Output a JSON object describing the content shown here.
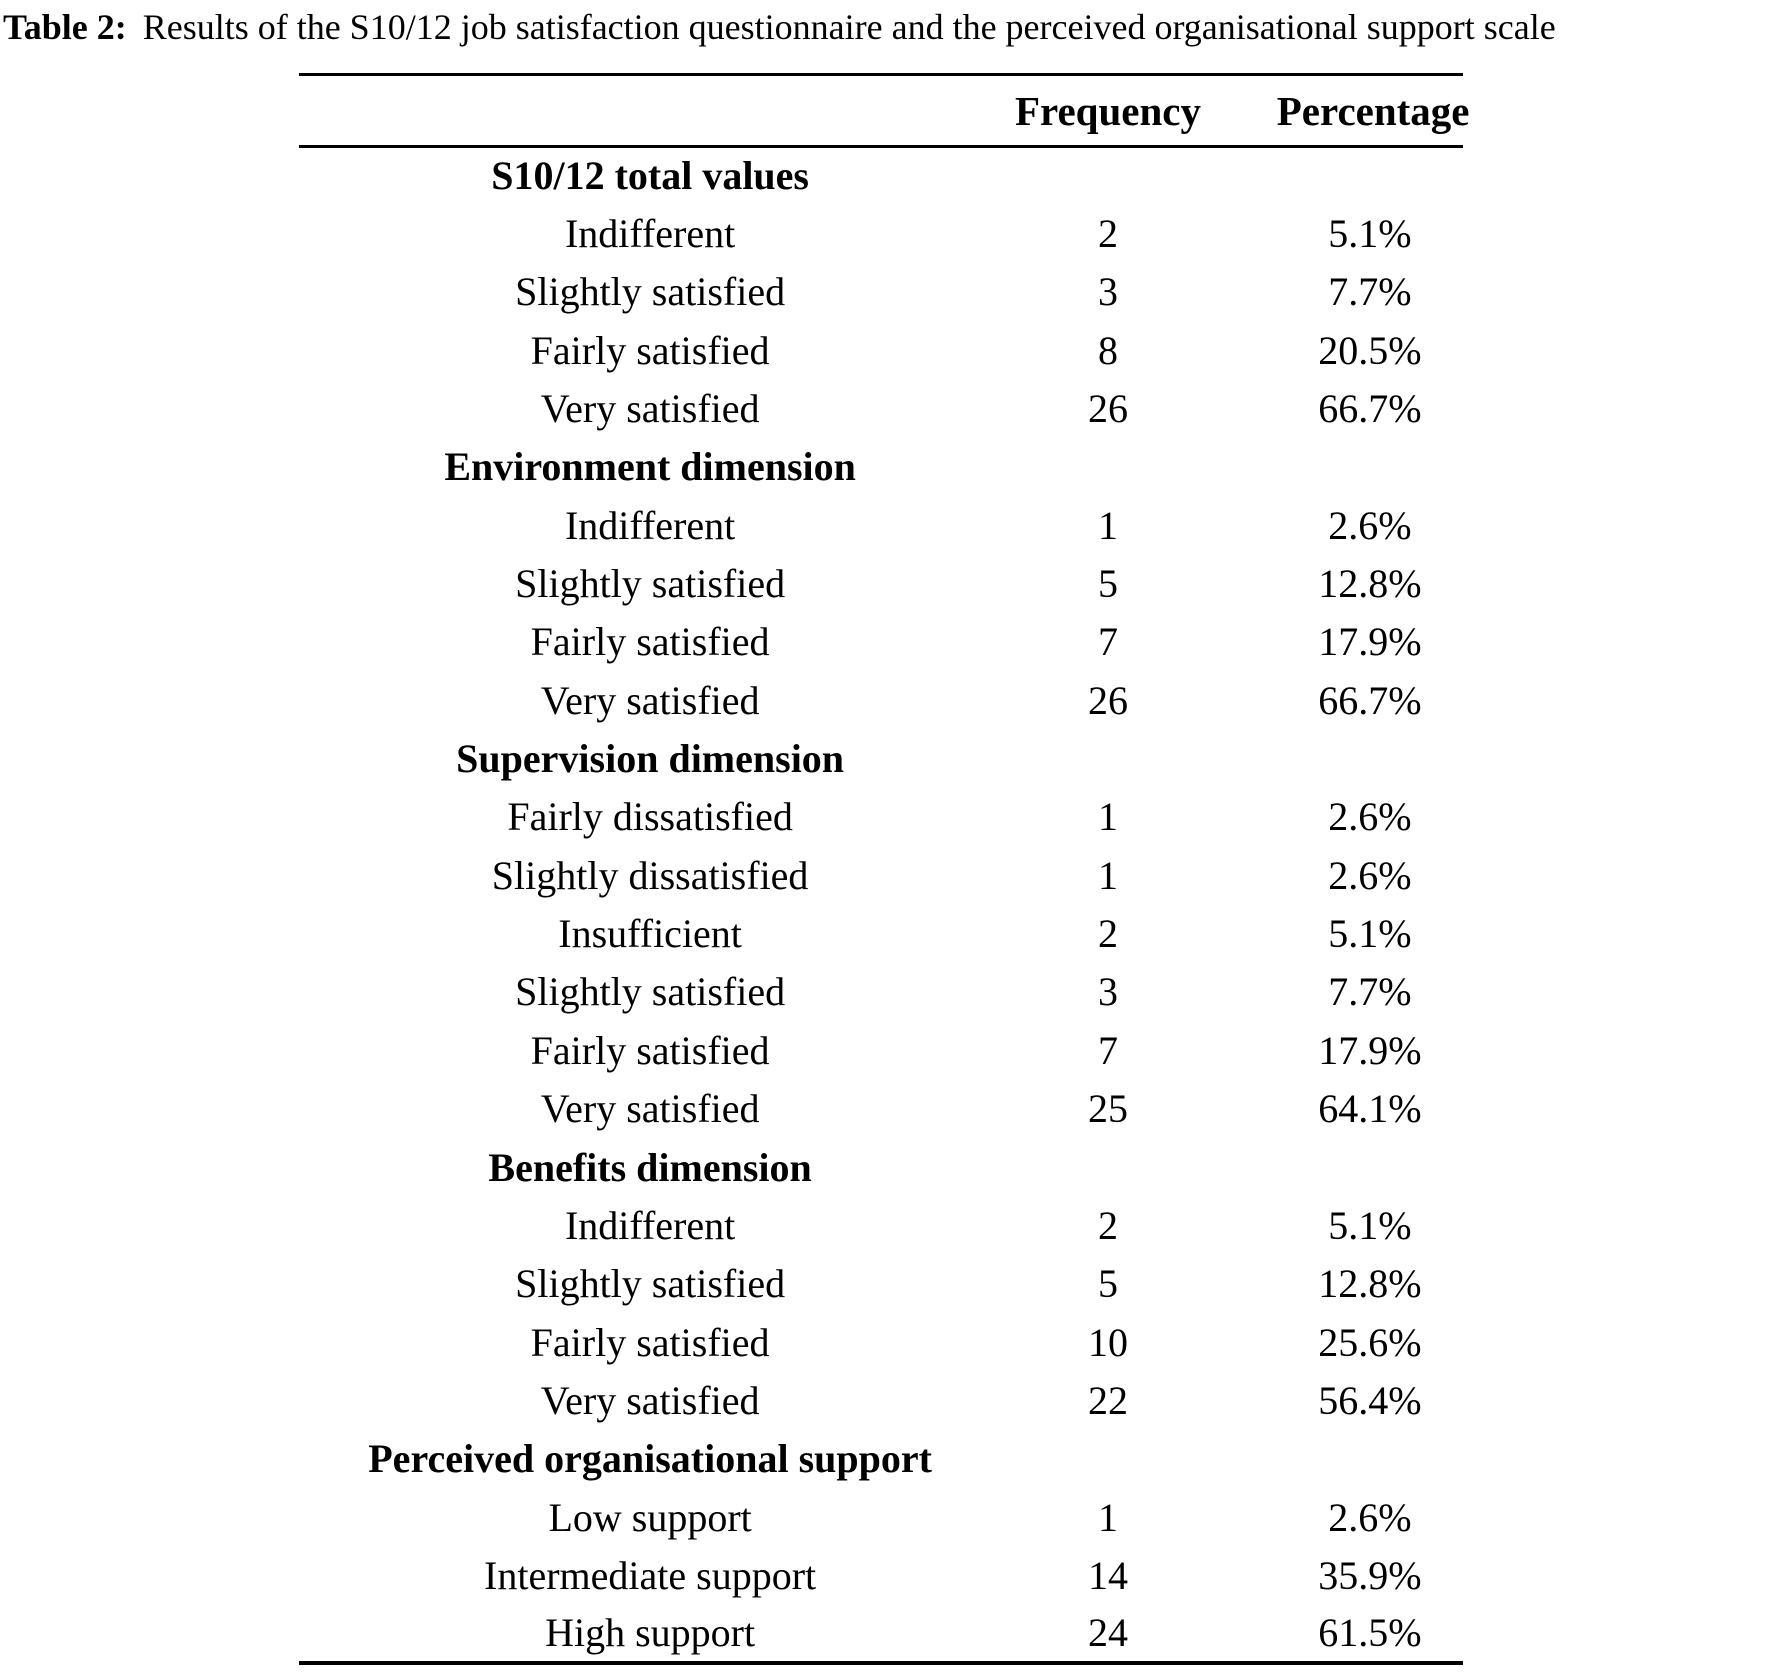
{
  "caption": {
    "label": "Table 2:",
    "text": "Results of the S10/12 job satisfaction questionnaire and the perceived organisational support scale"
  },
  "table": {
    "columns": [
      "",
      "Frequency",
      "Percentage"
    ],
    "sections": [
      {
        "title": "S10/12 total values",
        "rows": [
          [
            "Indifferent",
            "2",
            "5.1%"
          ],
          [
            "Slightly satisfied",
            "3",
            "7.7%"
          ],
          [
            "Fairly satisfied",
            "8",
            "20.5%"
          ],
          [
            "Very satisfied",
            "26",
            "66.7%"
          ]
        ]
      },
      {
        "title": "Environment dimension",
        "rows": [
          [
            "Indifferent",
            "1",
            "2.6%"
          ],
          [
            "Slightly satisfied",
            "5",
            "12.8%"
          ],
          [
            "Fairly satisfied",
            "7",
            "17.9%"
          ],
          [
            "Very satisfied",
            "26",
            "66.7%"
          ]
        ]
      },
      {
        "title": "Supervision dimension",
        "rows": [
          [
            "Fairly dissatisfied",
            "1",
            "2.6%"
          ],
          [
            "Slightly dissatisfied",
            "1",
            "2.6%"
          ],
          [
            "Insufficient",
            "2",
            "5.1%"
          ],
          [
            "Slightly satisfied",
            "3",
            "7.7%"
          ],
          [
            "Fairly satisfied",
            "7",
            "17.9%"
          ],
          [
            "Very satisfied",
            "25",
            "64.1%"
          ]
        ]
      },
      {
        "title": "Benefits dimension",
        "rows": [
          [
            "Indifferent",
            "2",
            "5.1%"
          ],
          [
            "Slightly satisfied",
            "5",
            "12.8%"
          ],
          [
            "Fairly satisfied",
            "10",
            "25.6%"
          ],
          [
            "Very satisfied",
            "22",
            "56.4%"
          ]
        ]
      },
      {
        "title": "Perceived organisational support",
        "rows": [
          [
            "Low support",
            "1",
            "2.6%"
          ],
          [
            "Intermediate support",
            "14",
            "35.9%"
          ],
          [
            "High support",
            "24",
            "61.5%"
          ]
        ]
      }
    ]
  }
}
